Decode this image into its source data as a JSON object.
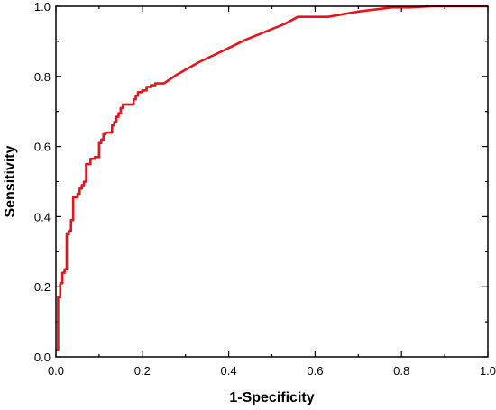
{
  "chart_data": {
    "type": "line",
    "title": "",
    "xlabel": "1-Specificity",
    "ylabel": "Sensitivity",
    "xlim": [
      0,
      1
    ],
    "ylim": [
      0,
      1
    ],
    "xticks": [
      "0.0",
      "0.2",
      "0.4",
      "0.6",
      "0.8",
      "1.0"
    ],
    "yticks": [
      "0.0",
      "0.2",
      "0.4",
      "0.6",
      "0.8",
      "1.0"
    ],
    "grid": false,
    "series": [
      {
        "color": "#e8141b",
        "x": [
          0.0,
          0.005,
          0.005,
          0.01,
          0.01,
          0.015,
          0.015,
          0.02,
          0.02,
          0.025,
          0.025,
          0.03,
          0.03,
          0.035,
          0.035,
          0.04,
          0.04,
          0.05,
          0.05,
          0.055,
          0.055,
          0.06,
          0.06,
          0.065,
          0.065,
          0.07,
          0.07,
          0.08,
          0.08,
          0.09,
          0.09,
          0.1,
          0.1,
          0.105,
          0.105,
          0.11,
          0.11,
          0.115,
          0.115,
          0.13,
          0.13,
          0.135,
          0.135,
          0.14,
          0.14,
          0.145,
          0.145,
          0.15,
          0.15,
          0.155,
          0.155,
          0.18,
          0.18,
          0.185,
          0.185,
          0.19,
          0.19,
          0.2,
          0.2,
          0.21,
          0.21,
          0.22,
          0.22,
          0.23,
          0.23,
          0.25,
          0.28,
          0.33,
          0.39,
          0.44,
          0.48,
          0.53,
          0.56,
          0.63,
          0.7,
          0.78,
          0.82,
          0.87,
          0.92,
          1.0
        ],
        "y": [
          0.02,
          0.02,
          0.17,
          0.17,
          0.21,
          0.21,
          0.24,
          0.24,
          0.25,
          0.25,
          0.35,
          0.35,
          0.36,
          0.36,
          0.39,
          0.39,
          0.455,
          0.455,
          0.465,
          0.465,
          0.48,
          0.48,
          0.49,
          0.49,
          0.5,
          0.5,
          0.55,
          0.55,
          0.565,
          0.565,
          0.57,
          0.57,
          0.61,
          0.61,
          0.62,
          0.62,
          0.635,
          0.635,
          0.64,
          0.64,
          0.66,
          0.66,
          0.67,
          0.67,
          0.685,
          0.685,
          0.695,
          0.695,
          0.71,
          0.71,
          0.72,
          0.72,
          0.735,
          0.735,
          0.745,
          0.745,
          0.755,
          0.755,
          0.76,
          0.76,
          0.77,
          0.77,
          0.775,
          0.775,
          0.78,
          0.78,
          0.805,
          0.84,
          0.875,
          0.905,
          0.925,
          0.95,
          0.97,
          0.97,
          0.985,
          0.997,
          0.997,
          1.0,
          1.0,
          1.0
        ]
      }
    ]
  }
}
